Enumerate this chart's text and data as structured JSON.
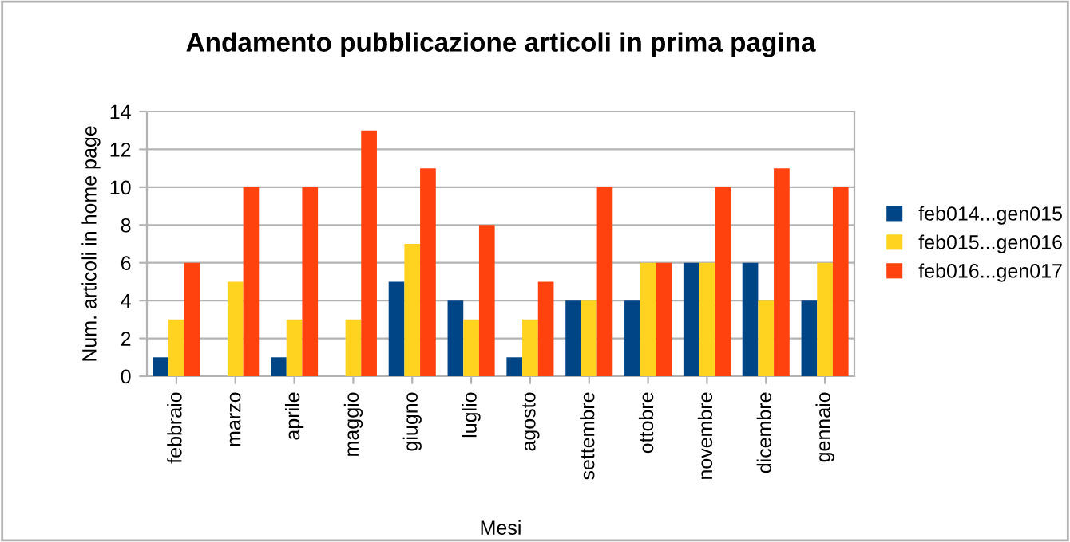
{
  "chart_data": {
    "type": "bar",
    "title": "Andamento pubblicazione articoli in prima pagina",
    "xlabel": "Mesi",
    "ylabel": "Num. articoli in home page",
    "categories": [
      "febbraio",
      "marzo",
      "aprile",
      "maggio",
      "giugno",
      "luglio",
      "agosto",
      "settembre",
      "ottobre",
      "novembre",
      "dicembre",
      "gennaio"
    ],
    "series": [
      {
        "name": "feb014...gen015",
        "color": "#004586",
        "values": [
          1,
          0,
          1,
          0,
          5,
          4,
          1,
          4,
          4,
          6,
          6,
          4
        ]
      },
      {
        "name": "feb015...gen016",
        "color": "#ffd320",
        "values": [
          3,
          5,
          3,
          3,
          7,
          3,
          3,
          4,
          6,
          6,
          4,
          6
        ]
      },
      {
        "name": "feb016...gen017",
        "color": "#ff420e",
        "values": [
          6,
          10,
          10,
          13,
          11,
          8,
          5,
          10,
          6,
          10,
          11,
          10
        ]
      }
    ],
    "ylim": [
      0,
      14
    ],
    "yticks": [
      0,
      2,
      4,
      6,
      8,
      10,
      12,
      14
    ],
    "grid": "y",
    "legend": "right"
  }
}
